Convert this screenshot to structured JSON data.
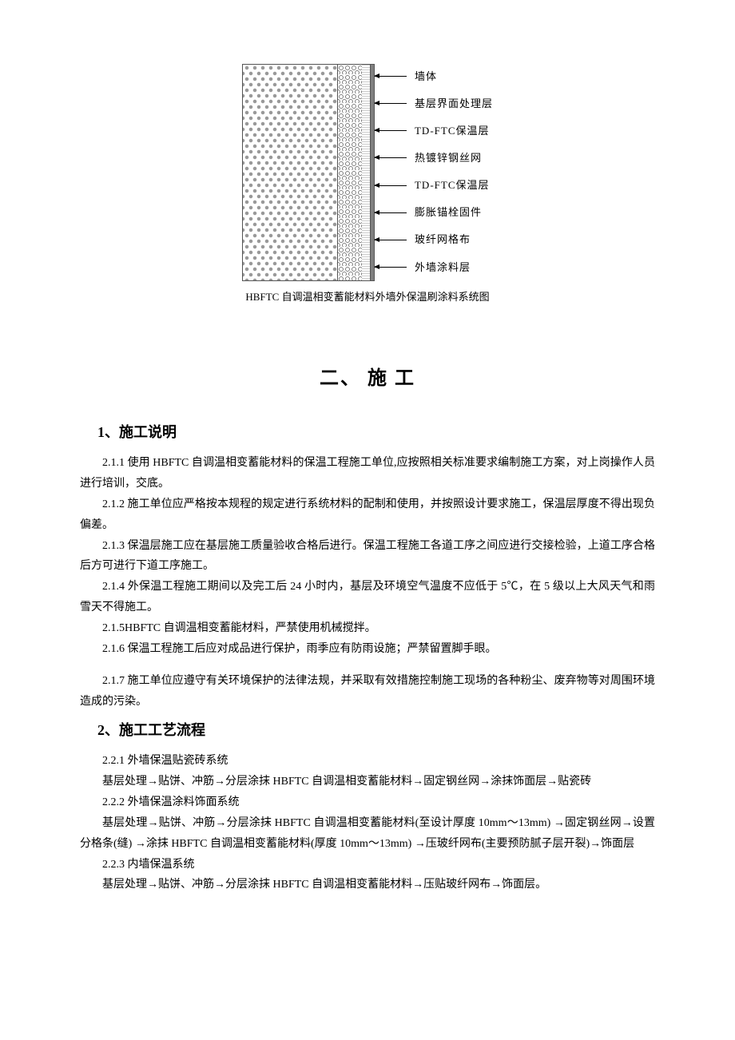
{
  "diagram": {
    "labels": [
      "墙体",
      "基层界面处理层",
      "TD-FTC保温层",
      "热镀锌钢丝网",
      "TD-FTC保温层",
      "膨胀锚栓固件",
      "玻纤网格布",
      "外墙涂料层"
    ],
    "caption": "HBFTC 自调温相变蓄能材料外墙外保温刷涂料系统图",
    "colors": {
      "circle_fill": "#999999",
      "line": "#555555",
      "outer": "#808080",
      "background": "#ffffff"
    }
  },
  "chapter": {
    "title": "二、  施  工"
  },
  "section1": {
    "title": "1、施工说明",
    "p1": "2.1.1 使用 HBFTC 自调温相变蓄能材料的保温工程施工单位,应按照相关标准要求编制施工方案，对上岗操作人员进行培训，交底。",
    "p2": "2.1.2 施工单位应严格按本规程的规定进行系统材料的配制和使用，并按照设计要求施工，保温层厚度不得出现负偏差。",
    "p3": "2.1.3 保温层施工应在基层施工质量验收合格后进行。保温工程施工各道工序之间应进行交接检验，上道工序合格后方可进行下道工序施工。",
    "p4": "2.1.4 外保温工程施工期间以及完工后 24 小时内，基层及环境空气温度不应低于 5℃，在 5 级以上大风天气和雨雪天不得施工。",
    "p5": "2.1.5HBFTC 自调温相变蓄能材料，严禁使用机械搅拌。",
    "p6": "2.1.6 保温工程施工后应对成品进行保护，雨季应有防雨设施；严禁留置脚手眼。",
    "p7": "2.1.7 施工单位应遵守有关环境保护的法律法规，并采取有效措施控制施工现场的各种粉尘、废弃物等对周围环境造成的污染。"
  },
  "section2": {
    "title": "2、施工工艺流程",
    "p1": "2.2.1 外墙保温贴瓷砖系统",
    "p2": "基层处理→贴饼、冲筋→分层涂抹 HBFTC 自调温相变蓄能材料→固定钢丝网→涂抹饰面层→贴瓷砖",
    "p3": "2.2.2 外墙保温涂料饰面系统",
    "p4": "基层处理→贴饼、冲筋→分层涂抹 HBFTC 自调温相变蓄能材料(至设计厚度 10mm～13mm) →固定钢丝网→设置分格条(缝) →涂抹 HBFTC 自调温相变蓄能材料(厚度 10mm～13mm) →压玻纤网布(主要预防腻子层开裂)→饰面层",
    "p5": "2.2.3 内墙保温系统",
    "p6": "基层处理→贴饼、冲筋→分层涂抹 HBFTC 自调温相变蓄能材料→压贴玻纤网布→饰面层。"
  }
}
